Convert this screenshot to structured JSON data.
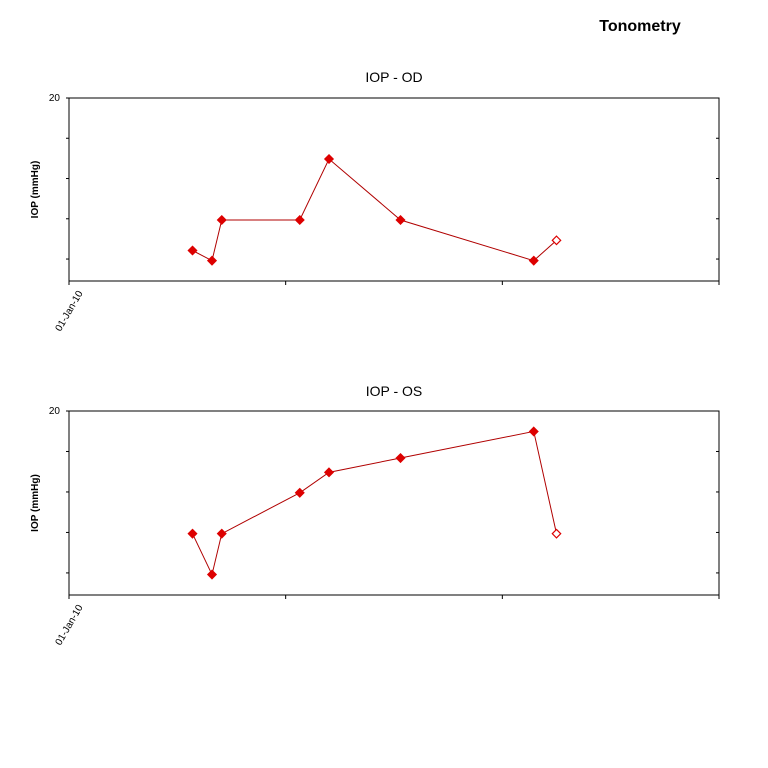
{
  "page": {
    "title": "Tonometry"
  },
  "chart_data": [
    {
      "type": "line",
      "title": "IOP - OD",
      "ylabel": "IOP (mmHg)",
      "xlabel": "",
      "x_tick_labels": [
        "01-Jan-10"
      ],
      "y_tick_labels": [
        "20"
      ],
      "ylim": [
        11,
        20
      ],
      "grid": false,
      "colors": {
        "line": "#b00000",
        "marker": "#dd0000"
      },
      "series": [
        {
          "points": [
            {
              "x": 0.19,
              "y": 12.5,
              "filled": true
            },
            {
              "x": 0.22,
              "y": 12.0,
              "filled": true
            },
            {
              "x": 0.235,
              "y": 14.0,
              "filled": true
            },
            {
              "x": 0.355,
              "y": 14.0,
              "filled": true
            },
            {
              "x": 0.4,
              "y": 17.0,
              "filled": true
            },
            {
              "x": 0.51,
              "y": 14.0,
              "filled": true
            },
            {
              "x": 0.715,
              "y": 12.0,
              "filled": true
            },
            {
              "x": 0.75,
              "y": 13.0,
              "filled": false
            }
          ]
        }
      ]
    },
    {
      "type": "line",
      "title": "IOP - OS",
      "ylabel": "IOP (mmHg)",
      "xlabel": "",
      "x_tick_labels": [
        "01-Jan-10"
      ],
      "y_tick_labels": [
        "20"
      ],
      "ylim": [
        11,
        20
      ],
      "grid": false,
      "colors": {
        "line": "#b00000",
        "marker": "#dd0000"
      },
      "series": [
        {
          "points": [
            {
              "x": 0.19,
              "y": 14.0,
              "filled": true
            },
            {
              "x": 0.22,
              "y": 12.0,
              "filled": true
            },
            {
              "x": 0.235,
              "y": 14.0,
              "filled": true
            },
            {
              "x": 0.355,
              "y": 16.0,
              "filled": true
            },
            {
              "x": 0.4,
              "y": 17.0,
              "filled": true
            },
            {
              "x": 0.51,
              "y": 17.7,
              "filled": true
            },
            {
              "x": 0.715,
              "y": 19.0,
              "filled": true
            },
            {
              "x": 0.75,
              "y": 14.0,
              "filled": false
            }
          ]
        }
      ]
    }
  ]
}
